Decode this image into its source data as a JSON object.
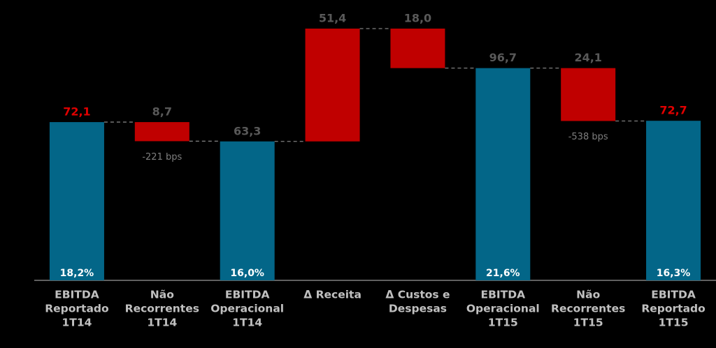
{
  "chart_data": {
    "type": "waterfall",
    "categories": [
      [
        "EBITDA",
        "Reportado",
        "1T14"
      ],
      [
        "Não",
        "Recorrentes",
        "1T14"
      ],
      [
        "EBITDA",
        "Operacional",
        "1T14"
      ],
      [
        "Δ Receita"
      ],
      [
        "Δ Custos e",
        "Despesas"
      ],
      [
        "EBITDA",
        "Operacional",
        "1T15"
      ],
      [
        "Não",
        "Recorrentes",
        "1T15"
      ],
      [
        "EBITDA",
        "Reportado",
        "1T15"
      ]
    ],
    "values": [
      72.1,
      8.7,
      63.3,
      51.4,
      18.0,
      96.7,
      24.1,
      72.7
    ],
    "value_labels": [
      "72,1",
      "8,7",
      "63,3",
      "51,4",
      "18,0",
      "96,7",
      "24,1",
      "72,7"
    ],
    "measures": [
      "total",
      "decrease",
      "total",
      "increase",
      "decrease",
      "total",
      "decrease",
      "total"
    ],
    "value_label_colors": [
      "#e00000",
      "#595959",
      "#595959",
      "#595959",
      "#595959",
      "#595959",
      "#595959",
      "#e00000"
    ],
    "margin_labels": [
      "18,2%",
      null,
      "16,0%",
      null,
      null,
      "21,6%",
      null,
      "16,3%"
    ],
    "bps_labels": [
      null,
      "-221 bps",
      null,
      null,
      null,
      null,
      "-538 bps",
      null
    ],
    "colors": {
      "total": "#036688",
      "increase": "#c00000",
      "decrease": "#c00000"
    }
  }
}
